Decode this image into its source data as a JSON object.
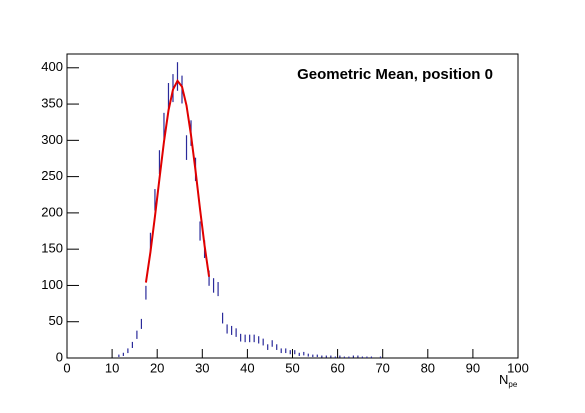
{
  "chart_data": {
    "type": "histogram",
    "title": "Geometric Mean, position 0",
    "x_label": "N",
    "x_label_sub": "pe",
    "x": [
      11.5,
      12.5,
      13.5,
      14.5,
      15.5,
      16.5,
      17.5,
      18.5,
      19.5,
      20.5,
      21.5,
      22.5,
      23.5,
      24.5,
      25.5,
      26.5,
      27.5,
      28.5,
      29.5,
      30.5,
      31.5,
      32.5,
      33.5,
      34.5,
      35.5,
      36.5,
      37.5,
      38.5,
      39.5,
      40.5,
      41.5,
      42.5,
      43.5,
      44.5,
      45.5,
      46.5,
      47.5,
      48.5,
      49.5,
      50.5,
      51.5,
      52.5,
      53.5,
      54.5,
      55.5,
      56.5,
      57.5,
      58.5,
      59.5,
      60.5,
      61.5,
      62.5,
      63.5,
      64.5,
      65.5,
      66.5,
      67.5,
      68.5,
      69.5
    ],
    "values": [
      3,
      5,
      10,
      18,
      32,
      47,
      90,
      160,
      218,
      270,
      320,
      360,
      372,
      388,
      370,
      290,
      310,
      260,
      175,
      150,
      110,
      100,
      95,
      55,
      40,
      38,
      35,
      28,
      27,
      27,
      27,
      25,
      22,
      15,
      20,
      15,
      10,
      10,
      8,
      8,
      5,
      6,
      4,
      3,
      3,
      2,
      2,
      2,
      1,
      2,
      1,
      1,
      2,
      2,
      1,
      1,
      1,
      0,
      1
    ],
    "errors": [
      1.7,
      2.2,
      3.2,
      4.2,
      5.7,
      6.9,
      9.5,
      12.6,
      14.8,
      16.4,
      17.9,
      19,
      19.3,
      19.7,
      19.2,
      17,
      17.6,
      16.1,
      13.2,
      12.2,
      10.5,
      10,
      9.7,
      7.4,
      6.3,
      6.2,
      5.9,
      5.3,
      5.2,
      5.2,
      5.2,
      5,
      4.7,
      3.9,
      4.5,
      3.9,
      3.2,
      3.2,
      2.8,
      2.8,
      2.2,
      2.4,
      2,
      1.7,
      1.7,
      1.4,
      1.4,
      1.4,
      1,
      1.4,
      1,
      1,
      1.4,
      1.4,
      1,
      1,
      1,
      0,
      1
    ],
    "color": "#2a2a9a",
    "fit": {
      "color": "#e00000",
      "x": [
        17.5,
        18.5,
        19.5,
        20.5,
        21.5,
        22.5,
        23.5,
        24.5,
        25.5,
        26.5,
        27.5,
        28.5,
        29.5,
        30.5,
        31.5
      ],
      "values": [
        104,
        146,
        195,
        247,
        298,
        341,
        370,
        382,
        374,
        348,
        307,
        258,
        205,
        155,
        112
      ]
    },
    "xlim": [
      0,
      100
    ],
    "xticks": [
      0,
      10,
      20,
      30,
      40,
      50,
      60,
      70,
      80,
      90,
      100
    ],
    "ylim": [
      0,
      419
    ],
    "yticks": [
      0,
      50,
      100,
      150,
      200,
      250,
      300,
      350,
      400
    ]
  }
}
